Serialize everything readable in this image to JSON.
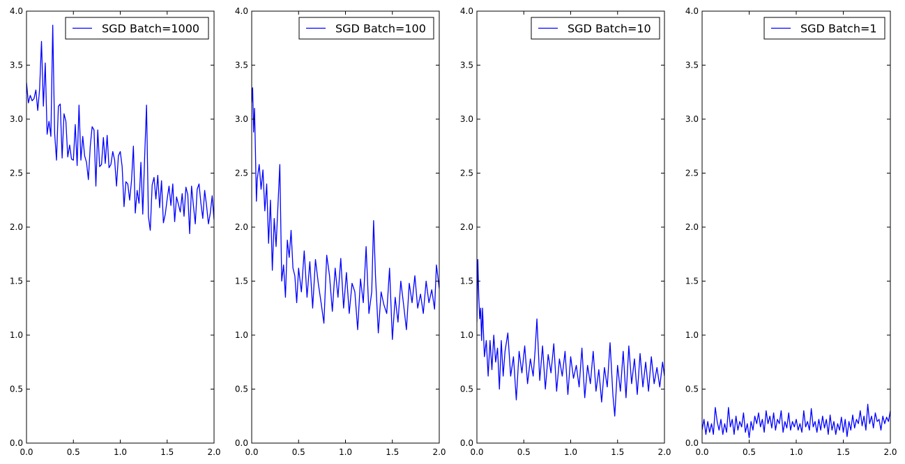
{
  "figure": {
    "background": "#ffffff",
    "axes_color": "#000000",
    "series_color": "#0000ff"
  },
  "chart_data": [
    {
      "type": "line",
      "title": "",
      "xlabel": "",
      "ylabel": "",
      "xlim": [
        0.0,
        2.0
      ],
      "ylim": [
        0.0,
        4.0
      ],
      "xticks": [
        "0.0",
        "0.5",
        "1.0",
        "1.5",
        "2.0"
      ],
      "yticks": [
        "0.0",
        "0.5",
        "1.0",
        "1.5",
        "2.0",
        "2.5",
        "3.0",
        "3.5",
        "4.0"
      ],
      "grid": false,
      "legend_position": "top-right",
      "series": [
        {
          "name": "SGD Batch=1000",
          "color": "#0000ff",
          "x": [
            0.0,
            0.02,
            0.04,
            0.06,
            0.08,
            0.1,
            0.12,
            0.14,
            0.16,
            0.18,
            0.2,
            0.22,
            0.24,
            0.26,
            0.28,
            0.3,
            0.32,
            0.34,
            0.36,
            0.38,
            0.4,
            0.42,
            0.44,
            0.46,
            0.48,
            0.5,
            0.52,
            0.54,
            0.56,
            0.58,
            0.6,
            0.62,
            0.64,
            0.66,
            0.68,
            0.7,
            0.72,
            0.74,
            0.76,
            0.78,
            0.8,
            0.82,
            0.84,
            0.86,
            0.88,
            0.9,
            0.92,
            0.94,
            0.96,
            0.98,
            1.0,
            1.02,
            1.04,
            1.06,
            1.08,
            1.1,
            1.12,
            1.14,
            1.16,
            1.18,
            1.2,
            1.22,
            1.24,
            1.26,
            1.28,
            1.3,
            1.32,
            1.34,
            1.36,
            1.38,
            1.4,
            1.42,
            1.44,
            1.46,
            1.48,
            1.5,
            1.52,
            1.54,
            1.56,
            1.58,
            1.6,
            1.62,
            1.64,
            1.66,
            1.68,
            1.7,
            1.72,
            1.74,
            1.76,
            1.78,
            1.8,
            1.82,
            1.84,
            1.86,
            1.88,
            1.9,
            1.92,
            1.94,
            1.96,
            1.98,
            2.0
          ],
          "y": [
            3.34,
            3.15,
            3.22,
            3.17,
            3.19,
            3.27,
            3.08,
            3.28,
            3.72,
            3.12,
            3.52,
            2.86,
            2.98,
            2.84,
            3.87,
            2.87,
            2.62,
            3.12,
            3.14,
            2.64,
            3.05,
            2.98,
            2.65,
            2.76,
            2.63,
            2.62,
            2.95,
            2.57,
            3.13,
            2.62,
            2.84,
            2.66,
            2.6,
            2.44,
            2.75,
            2.93,
            2.9,
            2.38,
            2.9,
            2.56,
            2.58,
            2.83,
            2.59,
            2.85,
            2.55,
            2.58,
            2.7,
            2.62,
            2.38,
            2.66,
            2.7,
            2.56,
            2.19,
            2.42,
            2.4,
            2.25,
            2.43,
            2.75,
            2.13,
            2.34,
            2.22,
            2.6,
            2.12,
            2.65,
            3.13,
            2.1,
            1.97,
            2.39,
            2.46,
            2.26,
            2.48,
            2.18,
            2.43,
            2.04,
            2.12,
            2.26,
            2.38,
            2.2,
            2.4,
            2.05,
            2.28,
            2.21,
            2.14,
            2.31,
            2.1,
            2.37,
            2.3,
            1.94,
            2.38,
            2.2,
            2.03,
            2.35,
            2.4,
            2.22,
            2.08,
            2.34,
            2.2,
            2.03,
            2.13,
            2.29,
            2.07
          ]
        }
      ]
    },
    {
      "type": "line",
      "title": "",
      "xlabel": "",
      "ylabel": "",
      "xlim": [
        0.0,
        2.0
      ],
      "ylim": [
        0.0,
        4.0
      ],
      "xticks": [
        "0.0",
        "0.5",
        "1.0",
        "1.5",
        "2.0"
      ],
      "yticks": [
        "0.0",
        "0.5",
        "1.0",
        "1.5",
        "2.0",
        "2.5",
        "3.0",
        "3.5",
        "4.0"
      ],
      "grid": false,
      "legend_position": "top-right",
      "series": [
        {
          "name": "SGD Batch=100",
          "color": "#0000ff",
          "x": [
            0.0,
            0.01,
            0.02,
            0.03,
            0.04,
            0.05,
            0.06,
            0.08,
            0.1,
            0.12,
            0.14,
            0.16,
            0.18,
            0.2,
            0.22,
            0.24,
            0.26,
            0.28,
            0.3,
            0.32,
            0.34,
            0.36,
            0.38,
            0.4,
            0.42,
            0.44,
            0.46,
            0.48,
            0.5,
            0.53,
            0.56,
            0.59,
            0.62,
            0.65,
            0.68,
            0.71,
            0.74,
            0.77,
            0.8,
            0.83,
            0.86,
            0.89,
            0.92,
            0.95,
            0.98,
            1.01,
            1.04,
            1.07,
            1.1,
            1.13,
            1.16,
            1.19,
            1.22,
            1.25,
            1.28,
            1.3,
            1.32,
            1.35,
            1.38,
            1.41,
            1.44,
            1.47,
            1.5,
            1.53,
            1.56,
            1.59,
            1.62,
            1.65,
            1.68,
            1.71,
            1.74,
            1.77,
            1.8,
            1.83,
            1.86,
            1.89,
            1.92,
            1.95,
            1.97,
            2.0
          ],
          "y": [
            3.15,
            3.29,
            2.88,
            3.1,
            2.7,
            2.24,
            2.45,
            2.58,
            2.35,
            2.53,
            2.15,
            2.4,
            1.85,
            2.25,
            1.6,
            2.08,
            1.82,
            2.2,
            2.58,
            1.5,
            1.65,
            1.35,
            1.88,
            1.72,
            1.97,
            1.62,
            1.55,
            1.3,
            1.62,
            1.4,
            1.78,
            1.35,
            1.68,
            1.25,
            1.7,
            1.48,
            1.3,
            1.11,
            1.74,
            1.55,
            1.22,
            1.62,
            1.35,
            1.71,
            1.25,
            1.58,
            1.2,
            1.48,
            1.4,
            1.05,
            1.52,
            1.3,
            1.82,
            1.2,
            1.4,
            2.06,
            1.55,
            1.02,
            1.4,
            1.28,
            1.2,
            1.62,
            0.96,
            1.35,
            1.12,
            1.5,
            1.28,
            1.05,
            1.48,
            1.3,
            1.55,
            1.25,
            1.38,
            1.2,
            1.5,
            1.3,
            1.42,
            1.24,
            1.65,
            1.43
          ]
        }
      ]
    },
    {
      "type": "line",
      "title": "",
      "xlabel": "",
      "ylabel": "",
      "xlim": [
        0.0,
        2.0
      ],
      "ylim": [
        0.0,
        4.0
      ],
      "xticks": [
        "0.0",
        "0.5",
        "1.0",
        "1.5",
        "2.0"
      ],
      "yticks": [
        "0.0",
        "0.5",
        "1.0",
        "1.5",
        "2.0",
        "2.5",
        "3.0",
        "3.5",
        "4.0"
      ],
      "grid": false,
      "legend_position": "top-right",
      "series": [
        {
          "name": "SGD Batch=10",
          "color": "#0000ff",
          "x": [
            0.0,
            0.01,
            0.02,
            0.03,
            0.04,
            0.05,
            0.06,
            0.08,
            0.1,
            0.12,
            0.14,
            0.16,
            0.18,
            0.2,
            0.22,
            0.24,
            0.26,
            0.28,
            0.3,
            0.33,
            0.36,
            0.39,
            0.42,
            0.45,
            0.48,
            0.51,
            0.54,
            0.57,
            0.6,
            0.62,
            0.64,
            0.67,
            0.7,
            0.73,
            0.76,
            0.79,
            0.82,
            0.85,
            0.88,
            0.91,
            0.94,
            0.97,
            1.0,
            1.03,
            1.06,
            1.09,
            1.12,
            1.15,
            1.18,
            1.21,
            1.24,
            1.27,
            1.3,
            1.33,
            1.36,
            1.39,
            1.42,
            1.45,
            1.47,
            1.5,
            1.53,
            1.56,
            1.59,
            1.62,
            1.65,
            1.68,
            1.71,
            1.74,
            1.77,
            1.8,
            1.83,
            1.86,
            1.89,
            1.92,
            1.95,
            1.98,
            2.0
          ],
          "y": [
            1.12,
            1.7,
            1.35,
            1.15,
            1.25,
            0.95,
            1.25,
            0.8,
            0.95,
            0.62,
            0.95,
            0.68,
            1.0,
            0.75,
            0.88,
            0.5,
            0.95,
            0.62,
            0.85,
            1.02,
            0.62,
            0.8,
            0.4,
            0.85,
            0.65,
            0.9,
            0.55,
            0.78,
            0.62,
            0.85,
            1.15,
            0.58,
            0.9,
            0.5,
            0.82,
            0.65,
            0.92,
            0.48,
            0.78,
            0.62,
            0.85,
            0.45,
            0.8,
            0.6,
            0.72,
            0.52,
            0.88,
            0.42,
            0.72,
            0.55,
            0.85,
            0.48,
            0.68,
            0.38,
            0.7,
            0.52,
            0.93,
            0.45,
            0.25,
            0.72,
            0.48,
            0.85,
            0.42,
            0.9,
            0.55,
            0.78,
            0.45,
            0.83,
            0.52,
            0.75,
            0.48,
            0.8,
            0.55,
            0.7,
            0.52,
            0.75,
            0.62
          ]
        }
      ]
    },
    {
      "type": "line",
      "title": "",
      "xlabel": "",
      "ylabel": "",
      "xlim": [
        0.0,
        2.0
      ],
      "ylim": [
        0.0,
        4.0
      ],
      "xticks": [
        "0.0",
        "0.5",
        "1.0",
        "1.5",
        "2.0"
      ],
      "yticks": [
        "0.0",
        "0.5",
        "1.0",
        "1.5",
        "2.0",
        "2.5",
        "3.0",
        "3.5",
        "4.0"
      ],
      "grid": false,
      "legend_position": "top-right",
      "series": [
        {
          "name": "SGD Batch=1",
          "color": "#0000ff",
          "x": [
            0.0,
            0.02,
            0.04,
            0.06,
            0.08,
            0.1,
            0.12,
            0.14,
            0.16,
            0.18,
            0.2,
            0.22,
            0.24,
            0.26,
            0.28,
            0.3,
            0.32,
            0.34,
            0.36,
            0.38,
            0.4,
            0.42,
            0.44,
            0.46,
            0.48,
            0.5,
            0.52,
            0.54,
            0.56,
            0.58,
            0.6,
            0.62,
            0.64,
            0.66,
            0.68,
            0.7,
            0.72,
            0.74,
            0.76,
            0.78,
            0.8,
            0.82,
            0.84,
            0.86,
            0.88,
            0.9,
            0.92,
            0.94,
            0.96,
            0.98,
            1.0,
            1.02,
            1.04,
            1.06,
            1.08,
            1.1,
            1.12,
            1.14,
            1.16,
            1.18,
            1.2,
            1.22,
            1.24,
            1.26,
            1.28,
            1.3,
            1.32,
            1.34,
            1.36,
            1.38,
            1.4,
            1.42,
            1.44,
            1.46,
            1.48,
            1.5,
            1.52,
            1.54,
            1.56,
            1.58,
            1.6,
            1.62,
            1.64,
            1.66,
            1.68,
            1.7,
            1.72,
            1.74,
            1.76,
            1.78,
            1.8,
            1.82,
            1.84,
            1.86,
            1.88,
            1.9,
            1.92,
            1.94,
            1.96,
            1.98,
            2.0
          ],
          "y": [
            0.12,
            0.22,
            0.08,
            0.2,
            0.1,
            0.18,
            0.08,
            0.33,
            0.2,
            0.12,
            0.22,
            0.08,
            0.18,
            0.1,
            0.33,
            0.15,
            0.22,
            0.08,
            0.25,
            0.12,
            0.2,
            0.15,
            0.28,
            0.1,
            0.18,
            0.05,
            0.2,
            0.12,
            0.25,
            0.18,
            0.28,
            0.15,
            0.22,
            0.1,
            0.3,
            0.18,
            0.25,
            0.14,
            0.28,
            0.12,
            0.22,
            0.18,
            0.3,
            0.1,
            0.2,
            0.14,
            0.28,
            0.12,
            0.2,
            0.15,
            0.22,
            0.12,
            0.18,
            0.1,
            0.3,
            0.15,
            0.2,
            0.12,
            0.32,
            0.15,
            0.2,
            0.1,
            0.22,
            0.12,
            0.25,
            0.14,
            0.22,
            0.08,
            0.26,
            0.12,
            0.2,
            0.08,
            0.18,
            0.12,
            0.24,
            0.1,
            0.22,
            0.06,
            0.2,
            0.12,
            0.26,
            0.14,
            0.22,
            0.18,
            0.3,
            0.16,
            0.25,
            0.12,
            0.36,
            0.18,
            0.25,
            0.14,
            0.28,
            0.2,
            0.22,
            0.12,
            0.25,
            0.18,
            0.24,
            0.2,
            0.3
          ]
        }
      ]
    }
  ]
}
